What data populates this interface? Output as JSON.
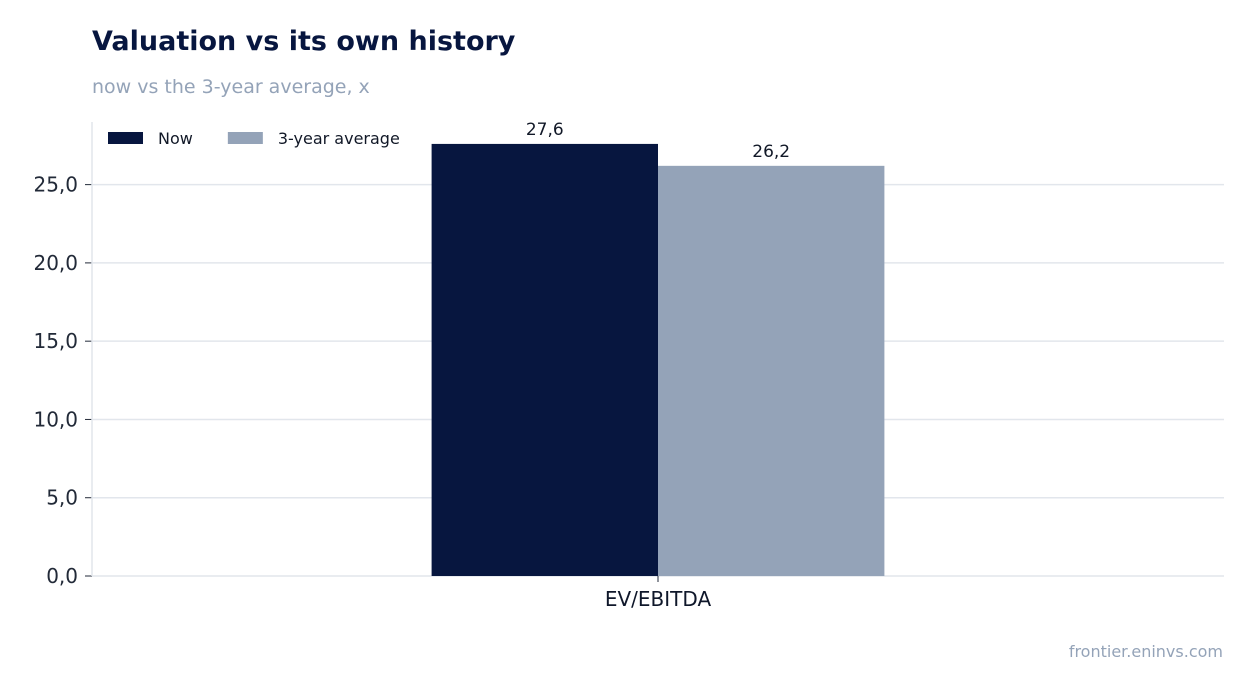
{
  "header": {
    "title": "Valuation vs its own history",
    "subtitle": "now vs the 3-year average, x"
  },
  "footer": {
    "source": "frontier.eninvs.com"
  },
  "chart_data": {
    "type": "bar",
    "title": "Valuation vs its own history",
    "subtitle": "now vs the 3-year average, x",
    "categories": [
      "EV/EBITDA"
    ],
    "series": [
      {
        "name": "Now",
        "values": [
          27.6
        ],
        "color": "#07163f",
        "label": "27,6"
      },
      {
        "name": "3-year average",
        "values": [
          26.2
        ],
        "color": "#94a3b8",
        "label": "26,2"
      }
    ],
    "xlabel": "",
    "ylabel": "",
    "ylim": [
      0,
      29
    ],
    "yticks": [
      0,
      5,
      10,
      15,
      20,
      25
    ],
    "ytick_labels": [
      "0,0",
      "5,0",
      "10,0",
      "15,0",
      "20,0",
      "25,0"
    ],
    "grid": true,
    "legend_position": "top-left"
  }
}
